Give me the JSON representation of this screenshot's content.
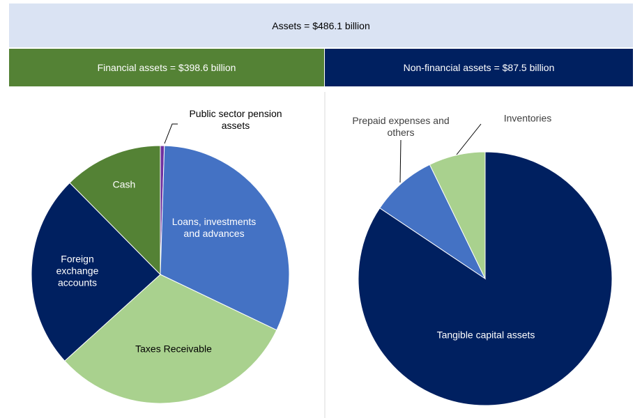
{
  "header": {
    "title": "Assets = $486.1 billion",
    "left": "Financial assets = $398.6 billion",
    "right": "Non-financial assets = $87.5 billion"
  },
  "chart_data": [
    {
      "type": "pie",
      "categories": [
        "Public sector pension assets",
        "Loans, investments and advances",
        "Taxes Receivable",
        "Foreign exchange accounts",
        "Cash"
      ],
      "values": [
        0.5,
        31.6,
        31.2,
        24.3,
        12.4
      ],
      "colors": [
        "#7030a0",
        "#4472c4",
        "#a9d18e",
        "#002060",
        "#548235"
      ]
    },
    {
      "type": "pie",
      "categories": [
        "Tangible capital assets",
        "Prepaid expenses and others",
        "Inventories"
      ],
      "values": [
        84.4,
        8.4,
        7.2
      ],
      "colors": [
        "#002060",
        "#4472c4",
        "#a9d18e"
      ]
    }
  ]
}
